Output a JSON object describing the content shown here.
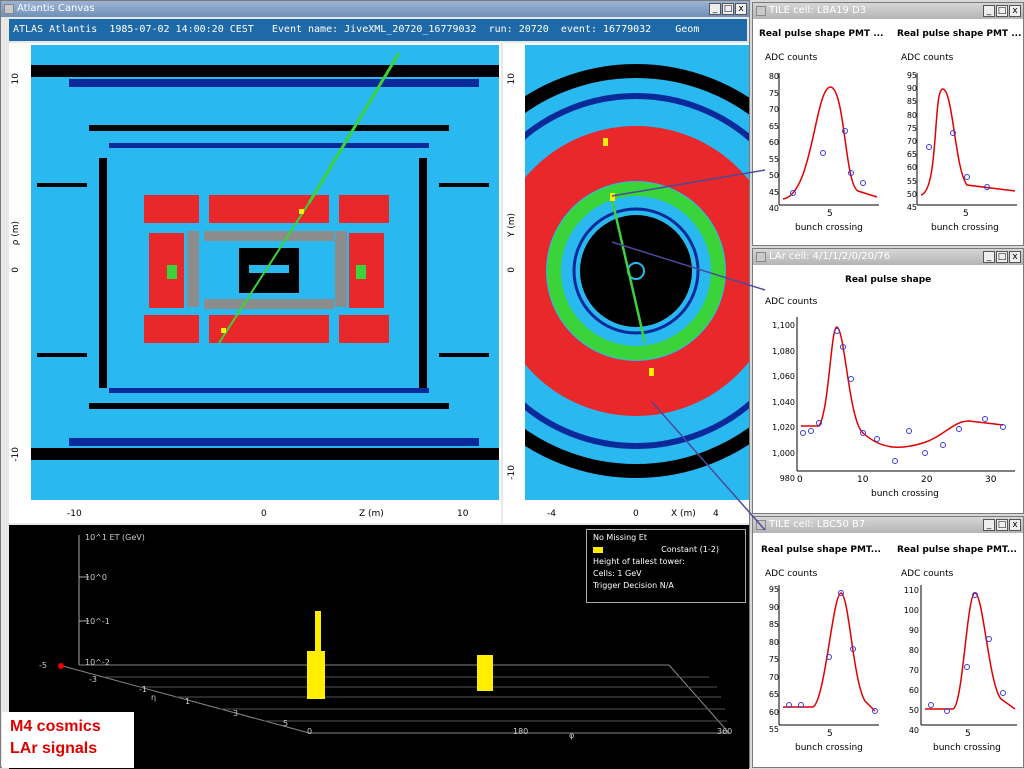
{
  "main_window": {
    "title": "Atlantis Canvas",
    "status_line": "ATLAS Atlantis  1985-07-02 14:00:20 CEST   Event name: JiveXML_20720_16779032  run: 20720  event: 16779032    Geom",
    "buttons": [
      "_",
      "□",
      "x"
    ]
  },
  "rz_view": {
    "x_ticks": [
      "-10",
      "0",
      "Z (m)",
      "10"
    ],
    "y_ticks": [
      "10",
      "ρ (m)",
      "0",
      "-10"
    ]
  },
  "xy_view": {
    "x_ticks": [
      "-4",
      "0",
      "X (m)",
      "4"
    ],
    "y_ticks": [
      "10",
      "Y (m)",
      "0",
      "-10"
    ]
  },
  "lego": {
    "y_ticks": [
      "10^1 ET (GeV)",
      "10^0",
      "10^-1",
      "10^-2"
    ],
    "origin_label": "-5",
    "eta_ticks": [
      "-3",
      "-1",
      "η",
      "1",
      "3",
      "5"
    ],
    "phi_ticks": [
      "0",
      "180",
      "φ",
      "360"
    ],
    "legend": [
      "No Missing Et",
      "Constant (1-2)",
      "Height of tallest tower:",
      "Cells: 1 GeV",
      "Trigger Decision N/A"
    ]
  },
  "caption": [
    "M4 cosmics",
    "LAr signals"
  ],
  "tile1": {
    "title": "TILE cell: LBA19 D3",
    "plots": [
      {
        "heading": "Real pulse shape PMT ...",
        "ylabel": "ADC counts",
        "xlabel": "bunch crossing",
        "yticks": [
          "80",
          "75",
          "70",
          "65",
          "60",
          "55",
          "50",
          "45",
          "40"
        ],
        "xtick": "5"
      },
      {
        "heading": "Real pulse shape PMT ...",
        "ylabel": "ADC counts",
        "xlabel": "bunch crossing",
        "yticks": [
          "95",
          "90",
          "85",
          "80",
          "75",
          "70",
          "65",
          "60",
          "55",
          "50",
          "45"
        ],
        "xtick": "5"
      }
    ]
  },
  "lar": {
    "title": "LAr cell: 4/1/1/2/0/20/76",
    "heading": "Real pulse shape",
    "ylabel": "ADC counts",
    "xlabel": "bunch crossing",
    "yticks": [
      "1,100",
      "1,080",
      "1,060",
      "1,040",
      "1,020",
      "1,000",
      "980"
    ],
    "xticks": [
      "0",
      "10",
      "20",
      "30"
    ]
  },
  "tile2": {
    "title": "TILE cell: LBC50 B7",
    "plots": [
      {
        "heading": "Real pulse shape PMT...",
        "ylabel": "ADC counts",
        "xlabel": "bunch crossing",
        "yticks": [
          "95",
          "90",
          "85",
          "80",
          "75",
          "70",
          "65",
          "60",
          "55"
        ],
        "xtick": "5"
      },
      {
        "heading": "Real pulse shape PMT...",
        "ylabel": "ADC counts",
        "xlabel": "bunch crossing",
        "yticks": [
          "110",
          "100",
          "90",
          "80",
          "70",
          "60",
          "50",
          "40"
        ],
        "xtick": "5"
      }
    ]
  },
  "colors": {
    "accent": "#1e6aa8",
    "detector_blue": "#2ab8f0",
    "calo_red": "#e8282a",
    "fit_line": "#e00000",
    "sample_point": "#3a3ae0"
  }
}
